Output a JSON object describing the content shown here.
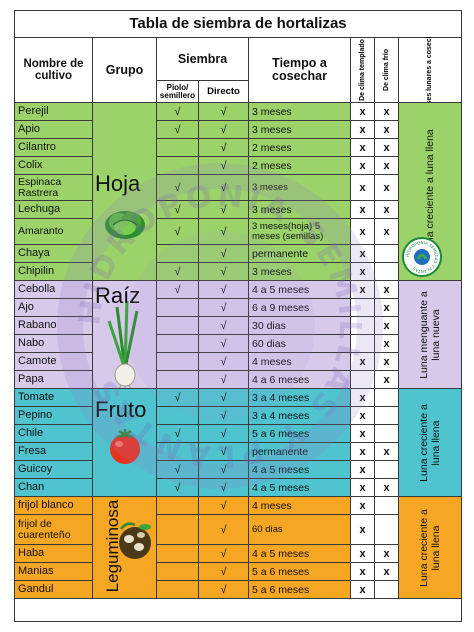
{
  "title": "Tabla de siembra de hortalizas",
  "headers": {
    "nombre": "Nombre de cultivo",
    "grupo": "Grupo",
    "siembra": "Siembra",
    "semillero": "Piolo/ semillero",
    "directo": "Directo",
    "tiempo": "Tiempo a cosechar",
    "clima_templado": "De clima templado",
    "clima_frio": "De clima frío",
    "fases": "Fases lunares a cosechar"
  },
  "watermark": "HIDROPONIA SEMILLAS Y PLANTAS",
  "logo_text": "HIDROPONIA SEMILLAS Y PLANTAS",
  "groups": [
    {
      "label": "Hoja",
      "phase": "Luna creciente a luna llena",
      "color": "#9bd36a",
      "icon": "lettuce-icon"
    },
    {
      "label": "Raíz",
      "phase": "Luna menguante a luna nueva",
      "color": "#d6c9ea",
      "icon": "onion-icon"
    },
    {
      "label": "Fruto",
      "phase": "Luna creciente a luna llena",
      "color": "#4fc4cf",
      "icon": "tomato-icon"
    },
    {
      "label": "Leguminosa",
      "phase": "Luna creciente a luna llena",
      "color": "#f5a623",
      "icon": "beans-icon"
    }
  ],
  "rows": [
    {
      "name": "Perejil",
      "semillero": "√",
      "directo": "√",
      "tiempo": "3 meses",
      "templado": "x",
      "frio": "x"
    },
    {
      "name": "Apio",
      "semillero": "√",
      "directo": "√",
      "tiempo": "3 meses",
      "templado": "x",
      "frio": "x"
    },
    {
      "name": "Cilantro",
      "semillero": "",
      "directo": "√",
      "tiempo": "2 meses",
      "templado": "x",
      "frio": "x"
    },
    {
      "name": "Colix",
      "semillero": "",
      "directo": "√",
      "tiempo": "2 meses",
      "templado": "x",
      "frio": "x"
    },
    {
      "name": "Espinaca Rastrera",
      "semillero": "√",
      "directo": "√",
      "tiempo": "3 meses",
      "templado": "x",
      "frio": "x"
    },
    {
      "name": "Lechuga",
      "semillero": "√",
      "directo": "√",
      "tiempo": "3 meses",
      "templado": "x",
      "frio": "x"
    },
    {
      "name": "Amaranto",
      "semillero": "√",
      "directo": "√",
      "tiempo": "3 meses(hoja) 5 meses (semillas)",
      "templado": "x",
      "frio": "x"
    },
    {
      "name": "Chaya",
      "semillero": "",
      "directo": "√",
      "tiempo": "permanente",
      "templado": "x",
      "frio": ""
    },
    {
      "name": "Chipilin",
      "semillero": "√",
      "directo": "√",
      "tiempo": "3 meses",
      "templado": "x",
      "frio": ""
    },
    {
      "name": "Cebolla",
      "semillero": "√",
      "directo": "√",
      "tiempo": "4 a 5 meses",
      "templado": "x",
      "frio": "x"
    },
    {
      "name": "Ajo",
      "semillero": "",
      "directo": "√",
      "tiempo": "6 a 9 meses",
      "templado": "",
      "frio": "x"
    },
    {
      "name": "Rabano",
      "semillero": "",
      "directo": "√",
      "tiempo": "30 dias",
      "templado": "",
      "frio": "x"
    },
    {
      "name": "Nabo",
      "semillero": "",
      "directo": "√",
      "tiempo": "60 dias",
      "templado": "",
      "frio": "x"
    },
    {
      "name": "Camote",
      "semillero": "",
      "directo": "√",
      "tiempo": "4 meses",
      "templado": "x",
      "frio": "x"
    },
    {
      "name": "Papa",
      "semillero": "",
      "directo": "√",
      "tiempo": "4 a 6 meses",
      "templado": "",
      "frio": "x"
    },
    {
      "name": "Tomate",
      "semillero": "√",
      "directo": "√",
      "tiempo": "3 a 4 meses",
      "templado": "x",
      "frio": ""
    },
    {
      "name": "Pepino",
      "semillero": "",
      "directo": "√",
      "tiempo": "3 a 4 meses",
      "templado": "x",
      "frio": ""
    },
    {
      "name": "Chile",
      "semillero": "√",
      "directo": "√",
      "tiempo": "5 a 6 meses",
      "templado": "x",
      "frio": ""
    },
    {
      "name": "Fresa",
      "semillero": "",
      "directo": "√",
      "tiempo": "permanente",
      "templado": "x",
      "frio": "x"
    },
    {
      "name": "Guicoy",
      "semillero": "√",
      "directo": "√",
      "tiempo": "4 a 5 meses",
      "templado": "x",
      "frio": ""
    },
    {
      "name": "Chan",
      "semillero": "√",
      "directo": "√",
      "tiempo": "4 a 5 meses",
      "templado": "x",
      "frio": "x"
    },
    {
      "name": "frijol blanco",
      "semillero": "",
      "directo": "√",
      "tiempo": "4 meses",
      "templado": "x",
      "frio": ""
    },
    {
      "name": "frijol de cuarenteño",
      "semillero": "",
      "directo": "√",
      "tiempo": "60 dias",
      "templado": "x",
      "frio": ""
    },
    {
      "name": "Haba",
      "semillero": "",
      "directo": "√",
      "tiempo": "4 a 5 meses",
      "templado": "x",
      "frio": "x"
    },
    {
      "name": "Manias",
      "semillero": "",
      "directo": "√",
      "tiempo": "5 a 6 meses",
      "templado": "x",
      "frio": "x"
    },
    {
      "name": "Gandul",
      "semillero": "",
      "directo": "√",
      "tiempo": "5 a 6 meses",
      "templado": "x",
      "frio": ""
    }
  ]
}
